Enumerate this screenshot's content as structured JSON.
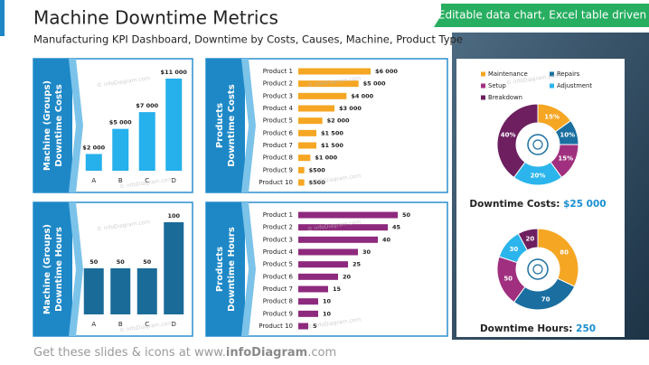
{
  "header": {
    "title": "Machine Downtime Metrics",
    "subtitle": "Manufacturing KPI Dashboard, Downtime by Costs, Causes, Machine, Product Type",
    "badge": "Editable data chart, Excel table driven",
    "watermark": "© infoDiagram.com"
  },
  "footer": {
    "parts": [
      "Get these slides & icons at www.",
      "infoDiagram",
      ".com"
    ]
  },
  "chart_data": [
    {
      "type": "bar",
      "title": [
        "Machine (Groups)",
        "Downtime Costs"
      ],
      "categories": [
        "A",
        "B",
        "C",
        "D"
      ],
      "values": [
        2000,
        5000,
        7000,
        11000
      ],
      "value_labels": [
        "$2 000",
        "$5 000",
        "$7 000",
        "$11 000"
      ],
      "color": "#26b0ec"
    },
    {
      "type": "hbar",
      "title": [
        "Products",
        "Downtime Costs"
      ],
      "categories": [
        "Product 1",
        "Product 2",
        "Product 3",
        "Product 4",
        "Product 5",
        "Product 6",
        "Product 7",
        "Product 8",
        "Product 9",
        "Product 10"
      ],
      "values": [
        6000,
        5000,
        4000,
        3000,
        2000,
        1500,
        1500,
        1000,
        500,
        500
      ],
      "value_labels": [
        "$6 000",
        "$5 000",
        "$4 000",
        "$3 000",
        "$2 000",
        "$1 500",
        "$1 500",
        "$1 000",
        "$500",
        "$500"
      ],
      "color": "#f5a623"
    },
    {
      "type": "bar",
      "title": [
        "Machine (Groups)",
        "Downtime Hours"
      ],
      "categories": [
        "A",
        "B",
        "C",
        "D"
      ],
      "values": [
        50,
        50,
        50,
        100
      ],
      "color": "#1a6b98"
    },
    {
      "type": "hbar",
      "title": [
        "Products",
        "Downtime Hours"
      ],
      "categories": [
        "Product 1",
        "Product 2",
        "Product 3",
        "Product 4",
        "Product 5",
        "Product 6",
        "Product 7",
        "Product 8",
        "Product 9",
        "Product 10"
      ],
      "values": [
        50,
        45,
        40,
        30,
        25,
        20,
        15,
        10,
        10,
        5
      ],
      "color": "#8e2a7e"
    },
    {
      "type": "donut",
      "title": "Downtime Costs:",
      "total": {
        "value": 25000,
        "label": "$25 000"
      },
      "categories": [
        "Maintenance",
        "Repairs",
        "Setup",
        "Adjustment",
        "Breakdown"
      ],
      "values": [
        15,
        10,
        15,
        20,
        40
      ],
      "value_labels": [
        "15%",
        "10%",
        "15%",
        "20%",
        "40%"
      ],
      "colors": [
        "#f5a623",
        "#1a6fa0",
        "#a0307f",
        "#2bb5ec",
        "#6d1f5f"
      ]
    },
    {
      "type": "donut",
      "title": "Downtime Hours:",
      "total": {
        "value": 250,
        "label": "250"
      },
      "values": [
        80,
        70,
        50,
        30,
        20
      ],
      "colors": [
        "#f5a623",
        "#1a6fa0",
        "#a0307f",
        "#2bb5ec",
        "#6d1f5f"
      ]
    }
  ]
}
